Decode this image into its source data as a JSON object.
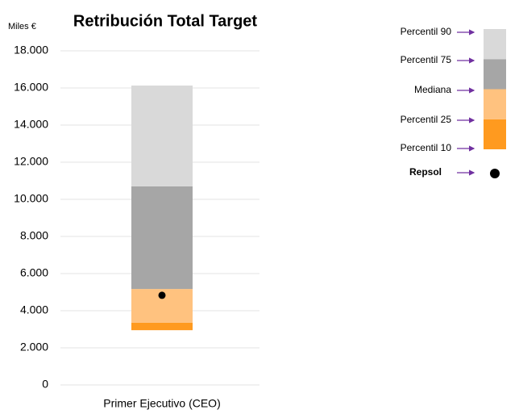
{
  "chart_data": {
    "type": "percentile_bar",
    "title": "Retribución Total Target",
    "y_unit": "Miles €",
    "categories": [
      "Primer Ejecutivo (CEO)"
    ],
    "levels": [
      {
        "name": "Percentil 10",
        "value": 2950
      },
      {
        "name": "Percentil 25",
        "value": 3350
      },
      {
        "name": "Mediana",
        "value": 5170
      },
      {
        "name": "Percentil 75",
        "value": 10700
      },
      {
        "name": "Percentil 90",
        "value": 16130
      }
    ],
    "segment_colors": [
      "#ff9a1f",
      "#ffc27f",
      "#a6a6a6",
      "#d9d9d9"
    ],
    "marker": {
      "name": "Repsol",
      "value": 4830,
      "color": "#000000"
    },
    "arrow_color": "#7030a0",
    "ylim": [
      0,
      18000
    ],
    "yticks": [
      0,
      {
        "value": 2000,
        "label": "2.000"
      },
      {
        "value": 4000,
        "label": "4.000"
      },
      {
        "value": 6000,
        "label": "6.000"
      },
      {
        "value": 8000,
        "label": "8.000"
      },
      {
        "value": 10000,
        "label": "10.000"
      },
      {
        "value": 12000,
        "label": "12.000"
      },
      {
        "value": 14000,
        "label": "14.000"
      },
      {
        "value": 16000,
        "label": "16.000"
      },
      {
        "value": 18000,
        "label": "18.000"
      }
    ],
    "grid": true
  }
}
